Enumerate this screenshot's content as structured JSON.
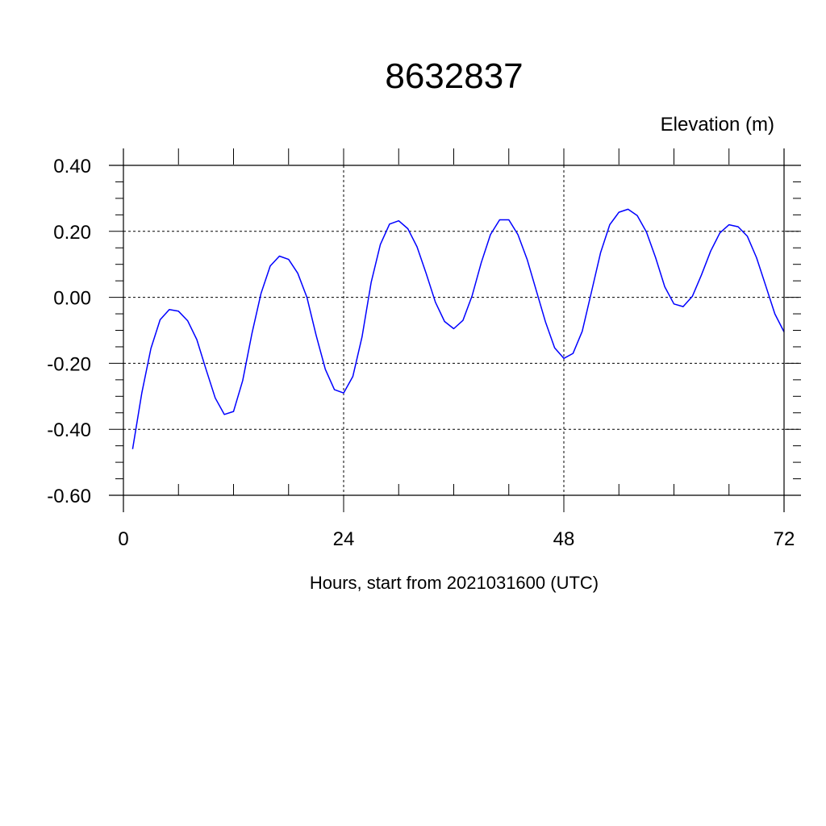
{
  "chart_data": {
    "type": "line",
    "title": "8632837",
    "ylabel": "Elevation (m)",
    "xlabel": "Hours, start from 2021031600 (UTC)",
    "xlim": [
      0,
      72
    ],
    "ylim": [
      -0.6,
      0.4
    ],
    "x_ticks": [
      0,
      24,
      48,
      72
    ],
    "x_tick_labels": [
      "0",
      "24",
      "48",
      "72"
    ],
    "y_ticks": [
      0.4,
      0.2,
      0.0,
      -0.2,
      -0.4,
      -0.6
    ],
    "y_tick_labels": [
      "0.40",
      "0.20",
      "0.00",
      "-0.20",
      "-0.40",
      "-0.60"
    ],
    "grid": true,
    "series": [
      {
        "color": "#0000ff",
        "x": [
          1,
          2,
          3,
          4,
          5,
          6,
          7,
          8,
          9,
          10,
          11,
          12,
          13,
          14,
          15,
          16,
          17,
          18,
          19,
          20,
          21,
          22,
          23,
          24,
          25,
          26,
          27,
          28,
          29,
          30,
          31,
          32,
          33,
          34,
          35,
          36,
          37,
          38,
          39,
          40,
          41,
          42,
          43,
          44,
          45,
          46,
          47,
          48,
          49,
          50,
          51,
          52,
          53,
          54,
          55,
          56,
          57,
          58,
          59,
          60,
          61,
          62,
          63,
          64,
          65,
          66,
          67,
          68,
          69,
          70,
          71,
          72
        ],
        "values": [
          -0.46,
          -0.29,
          -0.155,
          -0.068,
          -0.037,
          -0.042,
          -0.071,
          -0.128,
          -0.218,
          -0.305,
          -0.355,
          -0.346,
          -0.252,
          -0.11,
          0.012,
          0.095,
          0.125,
          0.115,
          0.073,
          0.0,
          -0.115,
          -0.218,
          -0.28,
          -0.29,
          -0.24,
          -0.12,
          0.045,
          0.16,
          0.222,
          0.232,
          0.208,
          0.153,
          0.072,
          -0.015,
          -0.073,
          -0.095,
          -0.07,
          0.005,
          0.105,
          0.19,
          0.235,
          0.235,
          0.19,
          0.115,
          0.02,
          -0.075,
          -0.153,
          -0.185,
          -0.17,
          -0.103,
          0.015,
          0.135,
          0.22,
          0.258,
          0.267,
          0.248,
          0.198,
          0.12,
          0.032,
          -0.02,
          -0.028,
          0.003,
          0.068,
          0.14,
          0.195,
          0.22,
          0.214,
          0.185,
          0.12,
          0.035,
          -0.05,
          -0.105
        ]
      }
    ]
  }
}
